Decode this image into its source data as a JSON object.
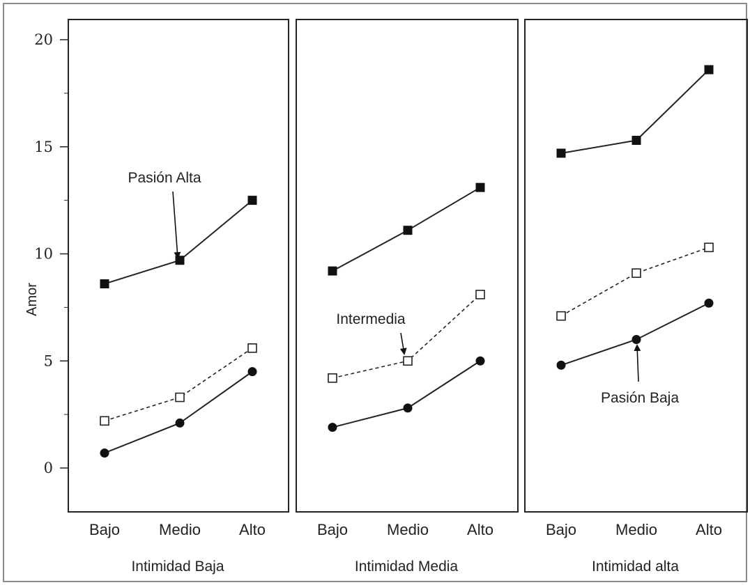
{
  "chart_data": {
    "type": "line",
    "ylabel": "Amor",
    "ylim": [
      -2,
      21
    ],
    "yticks": [
      0,
      5,
      10,
      15,
      20
    ],
    "categories": [
      "Bajo",
      "Medio",
      "Alto"
    ],
    "grid": false,
    "panels": [
      {
        "title": "Intimidad Baja",
        "series": [
          {
            "key": "alta",
            "marker": "filled-square",
            "line": "solid",
            "values": [
              8.6,
              9.7,
              12.5
            ]
          },
          {
            "key": "intermedia",
            "marker": "open-square",
            "line": "dashed",
            "values": [
              2.2,
              3.3,
              5.6
            ]
          },
          {
            "key": "baja",
            "marker": "filled-circle",
            "line": "solid",
            "values": [
              0.7,
              2.1,
              4.5
            ]
          }
        ],
        "annotations": [
          {
            "text": "Pasión Alta",
            "series": "alta",
            "point": 1
          }
        ]
      },
      {
        "title": "Intimidad Media",
        "series": [
          {
            "key": "alta",
            "marker": "filled-square",
            "line": "solid",
            "values": [
              9.2,
              11.1,
              13.1
            ]
          },
          {
            "key": "intermedia",
            "marker": "open-square",
            "line": "dashed",
            "values": [
              4.2,
              5.0,
              8.1
            ]
          },
          {
            "key": "baja",
            "marker": "filled-circle",
            "line": "solid",
            "values": [
              1.9,
              2.8,
              5.0
            ]
          }
        ],
        "annotations": [
          {
            "text": "Intermedia",
            "series": "intermedia",
            "point": 1
          }
        ]
      },
      {
        "title": "Intimidad alta",
        "series": [
          {
            "key": "alta",
            "marker": "filled-square",
            "line": "solid",
            "values": [
              14.7,
              15.3,
              18.6
            ]
          },
          {
            "key": "intermedia",
            "marker": "open-square",
            "line": "dashed",
            "values": [
              7.1,
              9.1,
              10.3
            ]
          },
          {
            "key": "baja",
            "marker": "filled-circle",
            "line": "solid",
            "values": [
              4.8,
              6.0,
              7.7
            ]
          }
        ],
        "annotations": [
          {
            "text": "Pasión Baja",
            "series": "baja",
            "point": 1
          }
        ]
      }
    ]
  }
}
